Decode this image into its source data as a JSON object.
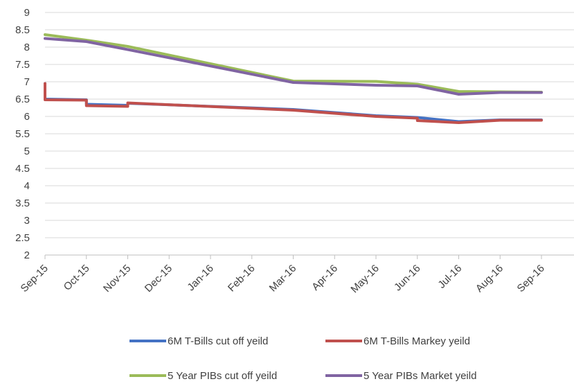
{
  "chart_data": {
    "type": "line",
    "title": "",
    "xlabel": "",
    "ylabel": "",
    "ylim": [
      2,
      9
    ],
    "ytick_step": 0.5,
    "grid": "horizontal",
    "legend_position": "bottom",
    "x_tick_labels": [
      "Sep-15",
      "Oct-15",
      "Nov-15",
      "Dec-15",
      "Jan-16",
      "Feb-16",
      "Mar-16",
      "Apr-16",
      "May-16",
      "Jun-16",
      "Jul-16",
      "Aug-16",
      "Sep-16"
    ],
    "y_tick_labels": [
      "2",
      "2.5",
      "3",
      "3.5",
      "4",
      "4.5",
      "5",
      "5.5",
      "6",
      "6.5",
      "7",
      "7.5",
      "8",
      "8.5",
      "9"
    ],
    "series": [
      {
        "name": "6M T-Bills cut off yeild",
        "color": "#4472C4",
        "points": [
          [
            0,
            6.95
          ],
          [
            0,
            6.5
          ],
          [
            1,
            6.48
          ],
          [
            1,
            6.35
          ],
          [
            2,
            6.32
          ],
          [
            2,
            6.38
          ],
          [
            6,
            6.2
          ],
          [
            8,
            6.02
          ],
          [
            9,
            5.97
          ],
          [
            10,
            5.85
          ],
          [
            11,
            5.9
          ],
          [
            12,
            5.9
          ]
        ]
      },
      {
        "name": "6M T-Bills Markey yeild",
        "color": "#C0504D",
        "points": [
          [
            0,
            6.95
          ],
          [
            0,
            6.48
          ],
          [
            1,
            6.47
          ],
          [
            1,
            6.31
          ],
          [
            2,
            6.29
          ],
          [
            2,
            6.39
          ],
          [
            6,
            6.18
          ],
          [
            8,
            6.0
          ],
          [
            9,
            5.95
          ],
          [
            9,
            5.88
          ],
          [
            10,
            5.82
          ],
          [
            11,
            5.89
          ],
          [
            12,
            5.89
          ]
        ]
      },
      {
        "name": "5 Year PIBs cut off yeild",
        "color": "#9BBB59",
        "points": [
          [
            0,
            8.36
          ],
          [
            1,
            8.2
          ],
          [
            2,
            8.02
          ],
          [
            6,
            7.02
          ],
          [
            8,
            7.01
          ],
          [
            9,
            6.93
          ],
          [
            10,
            6.72
          ],
          [
            11,
            6.71
          ],
          [
            12,
            6.7
          ]
        ]
      },
      {
        "name": "5 Year PIBs Market yeild",
        "color": "#8064A2",
        "points": [
          [
            0,
            8.25
          ],
          [
            1,
            8.16
          ],
          [
            2,
            7.93
          ],
          [
            6,
            6.98
          ],
          [
            8,
            6.9
          ],
          [
            9,
            6.88
          ],
          [
            10,
            6.64
          ],
          [
            11,
            6.69
          ],
          [
            12,
            6.69
          ]
        ]
      }
    ]
  }
}
